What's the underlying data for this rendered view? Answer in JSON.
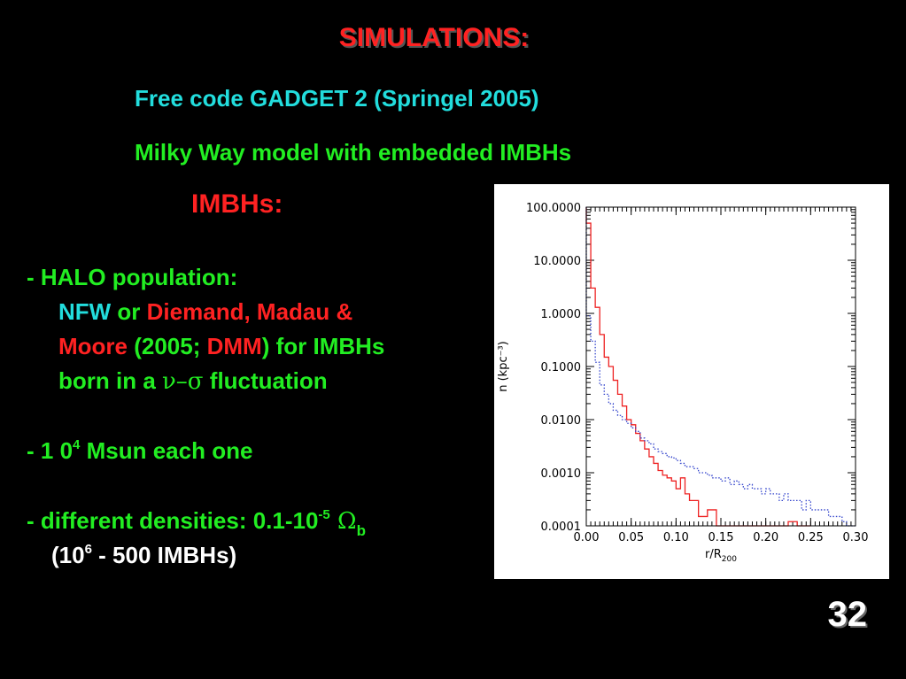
{
  "slide": {
    "title": "SIMULATIONS:",
    "line1": "Free code GADGET 2 (Springel 2005)",
    "line2": "Milky Way model with embedded IMBHs",
    "imbh_heading": "IMBHs:",
    "halo": {
      "heading": "- HALO population:",
      "nfw": "NFW",
      "or": " or ",
      "diemand": "Diemand, Madau &",
      "moore": "Moore",
      "paren_open": " (2005; ",
      "dmm": "DMM",
      "for_imbhs": ") for IMBHs",
      "born": "born in a ",
      "nu_sigma": "ν–σ",
      "fluctuation": " fluctuation"
    },
    "mass": {
      "prefix": "- 1 0",
      "exp": "4",
      "suffix": " Msun  each one"
    },
    "densities": {
      "prefix": "- different densities: 0.1-10",
      "exp": "-5",
      "omega": " Ω",
      "sub": "b",
      "range_open": "(10",
      "range_exp": "6",
      "range_rest": " - 500 IMBHs)"
    },
    "slide_number": "32"
  },
  "colors": {
    "background": "#000000",
    "title": "#ff2222",
    "green": "#22ee22",
    "cyan": "#22dddd",
    "red_series": "#ee2222",
    "blue_series": "#3344cc"
  },
  "chart_data": {
    "type": "line",
    "step": true,
    "xlabel": "r/R",
    "xlabel_sub": "200",
    "ylabel": "n (kpc⁻³)",
    "xlim": [
      0.0,
      0.3
    ],
    "ylim": [
      0.0001,
      100
    ],
    "yscale": "log",
    "x_ticks": [
      0.0,
      0.05,
      0.1,
      0.15,
      0.2,
      0.25,
      0.3
    ],
    "x_tick_labels": [
      "0.00",
      "0.05",
      "0.10",
      "0.15",
      "0.20",
      "0.25",
      "0.30"
    ],
    "y_ticks": [
      100,
      10,
      1,
      0.1,
      0.01,
      0.001,
      0.0001
    ],
    "y_tick_labels": [
      "100.0000",
      "10.0000",
      "1.0000",
      "0.1000",
      "0.0100",
      "0.0010",
      "0.0001"
    ],
    "series": [
      {
        "style": "solid",
        "color": "#ee2222",
        "x": [
          0.0,
          0.005,
          0.01,
          0.015,
          0.02,
          0.025,
          0.03,
          0.035,
          0.04,
          0.045,
          0.05,
          0.055,
          0.06,
          0.065,
          0.07,
          0.075,
          0.08,
          0.085,
          0.09,
          0.095,
          0.1,
          0.105,
          0.11,
          0.115,
          0.12,
          0.125,
          0.13,
          0.135,
          0.14,
          0.145,
          0.15,
          0.155,
          0.16,
          0.165,
          0.17,
          0.175,
          0.18,
          0.185,
          0.19,
          0.195,
          0.2,
          0.205,
          0.21,
          0.215,
          0.22,
          0.225,
          0.23,
          0.235,
          0.24,
          0.245
        ],
        "y": [
          50,
          3.0,
          1.3,
          0.4,
          0.15,
          0.1,
          0.055,
          0.03,
          0.018,
          0.01,
          0.008,
          0.0055,
          0.004,
          0.0028,
          0.002,
          0.0015,
          0.0011,
          0.0009,
          0.0008,
          0.0007,
          0.0005,
          0.0008,
          0.0004,
          0.0003,
          0.0003,
          0.00015,
          0.00015,
          0.0002,
          0.0002,
          0.0001,
          0.0001,
          0.0001,
          0.0001,
          0.0001,
          0.0001,
          0.0001,
          0.0001,
          0.0001,
          0.0001,
          0.0001,
          0.0001,
          0.0001,
          0.0001,
          0.0001,
          0.0001,
          0.00012,
          0.00012,
          0.0001,
          0.0001,
          0.0001
        ]
      },
      {
        "style": "dotted",
        "color": "#3344cc",
        "x": [
          0.0,
          0.005,
          0.01,
          0.015,
          0.02,
          0.025,
          0.03,
          0.035,
          0.04,
          0.045,
          0.05,
          0.055,
          0.06,
          0.065,
          0.07,
          0.075,
          0.08,
          0.085,
          0.09,
          0.095,
          0.1,
          0.105,
          0.11,
          0.115,
          0.12,
          0.125,
          0.13,
          0.135,
          0.14,
          0.145,
          0.15,
          0.155,
          0.16,
          0.165,
          0.17,
          0.175,
          0.18,
          0.185,
          0.19,
          0.195,
          0.2,
          0.205,
          0.21,
          0.215,
          0.22,
          0.225,
          0.23,
          0.235,
          0.24,
          0.245,
          0.25,
          0.255,
          0.26,
          0.265,
          0.27,
          0.275,
          0.28,
          0.285,
          0.29,
          0.295
        ],
        "y": [
          0.9,
          0.3,
          0.12,
          0.045,
          0.03,
          0.02,
          0.015,
          0.012,
          0.01,
          0.0085,
          0.007,
          0.006,
          0.0045,
          0.004,
          0.0035,
          0.0028,
          0.0025,
          0.0023,
          0.002,
          0.0019,
          0.0017,
          0.0015,
          0.0013,
          0.0013,
          0.0012,
          0.001,
          0.001,
          0.0009,
          0.0008,
          0.0008,
          0.0007,
          0.0008,
          0.0006,
          0.0007,
          0.0006,
          0.0005,
          0.0006,
          0.0005,
          0.0005,
          0.0004,
          0.0005,
          0.0004,
          0.0004,
          0.0003,
          0.0004,
          0.0003,
          0.0003,
          0.0003,
          0.0002,
          0.0003,
          0.0002,
          0.0002,
          0.0002,
          0.0002,
          0.00015,
          0.00015,
          0.00015,
          0.00012,
          0.0001,
          0.0001
        ]
      }
    ]
  }
}
